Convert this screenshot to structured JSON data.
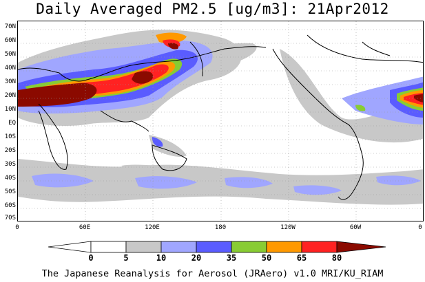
{
  "title": "Daily Averaged PM2.5 [ug/m3]: 21Apr2012",
  "footer": "The Japanese Reanalysis for Aerosol (JRAero) v1.0 MRI/KU_RIAM",
  "lat_labels": [
    "70N",
    "60N",
    "50N",
    "40N",
    "30N",
    "20N",
    "10N",
    "EQ",
    "10S",
    "20S",
    "30S",
    "40S",
    "50S",
    "60S",
    "70S"
  ],
  "lon_labels": [
    "0",
    "60E",
    "120E",
    "180",
    "120W",
    "60W",
    "0"
  ],
  "colorbar": {
    "levels": [
      "0",
      "5",
      "10",
      "20",
      "35",
      "50",
      "65",
      "80"
    ],
    "colors": [
      "#ffffff",
      "#c8c8c8",
      "#a0a6ff",
      "#5a5cff",
      "#88cc33",
      "#ff9900",
      "#ff2222",
      "#8b0a00"
    ]
  },
  "colors": {
    "light_gray": "#c8c8c8",
    "light_blue": "#a0a6ff",
    "blue": "#5a5cff",
    "green": "#88cc33",
    "orange": "#ff9900",
    "red": "#ff2222",
    "dark_red": "#8b0a00"
  }
}
